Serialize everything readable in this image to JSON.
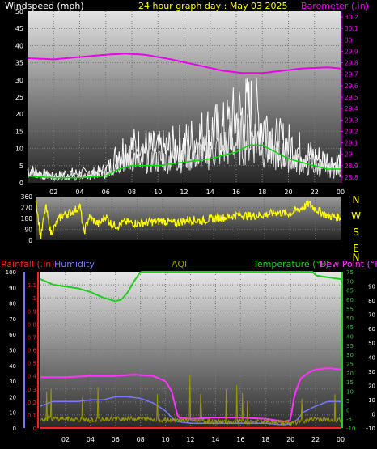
{
  "header": {
    "wind_label": "Windspeed (mph)",
    "graph_title": "24 hour graph day : May 03 2025",
    "baro_label": "Barometer (.in)"
  },
  "colors": {
    "wind": "#ffffff",
    "wind_gust": "#e0e0e0",
    "wind_avg": "#00dd00",
    "barometer": "#ee00ee",
    "direction": "#ffff00",
    "rain": "#ff2020",
    "humidity": "#7777ff",
    "aqi": "#999900",
    "temperature": "#22cc22",
    "dewpoint": "#ff33ff",
    "labels_yellow": "#ffff00",
    "compass": "#ffff00"
  },
  "lower_header": {
    "rain_label": "Rainfall (.in)",
    "humidity_label": "Humidity",
    "aqi_label": "AQI",
    "temp_label": "Temperature (°F)",
    "dew_label": "Dew Point (°F)"
  },
  "chart_data": [
    {
      "type": "line",
      "title": "24 hour graph day : May 03 2025",
      "x_ticks": [
        "02",
        "04",
        "06",
        "08",
        "10",
        "12",
        "14",
        "16",
        "18",
        "20",
        "22",
        "00"
      ],
      "xlim_hours": [
        0,
        24
      ],
      "left_axis": {
        "label": "Windspeed (mph)",
        "ylim": [
          0,
          50
        ],
        "ticks": [
          "0",
          "5",
          "10",
          "15",
          "20",
          "25",
          "30",
          "35",
          "40",
          "45",
          "50"
        ]
      },
      "right_axis": {
        "label": "Barometer (.in)",
        "ylim": [
          28.75,
          30.25
        ],
        "ticks": [
          "28.8",
          "28.9",
          "29",
          "29.1",
          "29.2",
          "29.3",
          "29.4",
          "29.5",
          "29.6",
          "29.7",
          "29.8",
          "29.9",
          "30",
          "30.1",
          "30.2"
        ]
      },
      "series": [
        {
          "name": "Barometer (.in)",
          "axis": "right",
          "x": [
            0,
            2,
            4,
            6,
            7.5,
            9,
            11,
            13,
            15,
            16.5,
            18,
            19.5,
            21,
            23,
            24
          ],
          "values": [
            29.84,
            29.83,
            29.85,
            29.87,
            29.88,
            29.87,
            29.83,
            29.78,
            29.73,
            29.71,
            29.71,
            29.73,
            29.75,
            29.76,
            29.75
          ]
        },
        {
          "name": "Windspeed (mph)",
          "axis": "left",
          "noisy": true,
          "x": [
            0,
            1,
            2,
            3,
            4,
            5,
            6,
            6.5,
            7,
            8,
            9,
            10,
            11,
            12,
            13,
            14,
            15,
            15.5,
            16,
            16.5,
            17,
            17.5,
            18,
            18.5,
            19,
            20,
            21,
            22,
            23,
            23.5,
            24
          ],
          "values": [
            4,
            3,
            2,
            3,
            3,
            3,
            4,
            6,
            10,
            11,
            11,
            10,
            11,
            12,
            14,
            16,
            16,
            18,
            20,
            21,
            22,
            21,
            19,
            17,
            13,
            12,
            10,
            8,
            7,
            6,
            7
          ]
        },
        {
          "name": "Gust",
          "axis": "left",
          "noisy": true,
          "x": [
            0,
            2,
            4,
            6,
            7,
            8,
            10,
            12,
            14,
            15,
            16,
            17,
            17.5,
            18,
            19,
            20,
            21,
            22,
            23,
            24
          ],
          "values": [
            3,
            2,
            2,
            3,
            7,
            8,
            7,
            8,
            10,
            11,
            13,
            14,
            14,
            12,
            9,
            8,
            6,
            5,
            4,
            4
          ]
        },
        {
          "name": "Average",
          "axis": "left",
          "x": [
            0,
            2,
            4,
            6,
            7,
            8,
            10,
            12,
            14,
            15,
            16,
            17,
            18,
            19,
            20,
            21,
            22,
            23,
            24
          ],
          "values": [
            2,
            1.5,
            1.5,
            2,
            4,
            5,
            5,
            6,
            7,
            8,
            9,
            11,
            11,
            9,
            7,
            6,
            5,
            4,
            4
          ]
        }
      ]
    },
    {
      "type": "line",
      "ylim": [
        0,
        360
      ],
      "y_ticks": [
        "0",
        "90",
        "180",
        "270",
        "360"
      ],
      "compass_labels": [
        "N",
        "W",
        "S",
        "E",
        "N"
      ],
      "series": [
        {
          "name": "Wind Direction",
          "noisy": true,
          "x": [
            0,
            0.4,
            0.8,
            1.2,
            2,
            3,
            3.5,
            3.8,
            4.2,
            5,
            5.5,
            6,
            6.5,
            7,
            8,
            9,
            10,
            11,
            12,
            13,
            14,
            15,
            16,
            17,
            18,
            19,
            20,
            21,
            21.5,
            22,
            23,
            24
          ],
          "values": [
            350,
            20,
            280,
            60,
            200,
            240,
            280,
            60,
            190,
            130,
            200,
            130,
            120,
            150,
            140,
            150,
            160,
            140,
            170,
            160,
            180,
            190,
            210,
            200,
            210,
            230,
            220,
            270,
            300,
            260,
            200,
            190
          ]
        }
      ]
    },
    {
      "type": "line",
      "axes": {
        "humidity": {
          "label": "Humidity",
          "ylim": [
            0,
            100
          ],
          "ticks": [
            "0",
            "10",
            "20",
            "30",
            "40",
            "50",
            "60",
            "70",
            "80",
            "90",
            "100"
          ]
        },
        "rainfall": {
          "label": "Rainfall (.in)",
          "ylim": [
            0,
            1.2
          ],
          "ticks": [
            "0",
            "0.1",
            "0.2",
            "0.3",
            "0.4",
            "0.5",
            "0.6",
            "0.7",
            "0.8",
            "0.9",
            "1",
            "1.1"
          ]
        },
        "temperature": {
          "label": "Temperature (°F)",
          "ylim": [
            -10,
            75
          ],
          "ticks": [
            "-10",
            "-5",
            "0",
            "5",
            "10",
            "15",
            "20",
            "25",
            "30",
            "35",
            "40",
            "45",
            "50",
            "55",
            "60",
            "65",
            "70",
            "75"
          ]
        },
        "dewpoint": {
          "label": "Dew Point (°F)",
          "ylim": [
            -10,
            100
          ],
          "ticks": [
            "-10",
            "0",
            "10",
            "20",
            "30",
            "40",
            "50",
            "60",
            "70",
            "80",
            "90"
          ]
        }
      },
      "x_ticks": [
        "02",
        "04",
        "06",
        "08",
        "10",
        "12",
        "14",
        "16",
        "18",
        "20",
        "22",
        "00"
      ],
      "series": [
        {
          "name": "Temperature (°F)",
          "axis": "temperature",
          "x": [
            0,
            1,
            2,
            3,
            4,
            5,
            6,
            6.5,
            7,
            7.5,
            8,
            8.5,
            21.5,
            22,
            23,
            24
          ],
          "values": [
            71,
            68,
            67,
            66,
            64,
            61,
            59,
            60,
            64,
            70,
            75,
            78,
            78,
            73,
            72,
            71
          ]
        },
        {
          "name": "Dew Point (°F)",
          "axis": "rainfall",
          "x": [
            0,
            2,
            4,
            6,
            7.5,
            9,
            10,
            10.5,
            11,
            12,
            14,
            16,
            18,
            19.5,
            20,
            20.3,
            20.8,
            21.5,
            22,
            23,
            24
          ],
          "values": [
            0.39,
            0.39,
            0.4,
            0.4,
            0.41,
            0.4,
            0.36,
            0.28,
            0.08,
            0.07,
            0.08,
            0.08,
            0.07,
            0.05,
            0.06,
            0.25,
            0.38,
            0.43,
            0.45,
            0.46,
            0.45
          ]
        },
        {
          "name": "Humidity",
          "axis": "humidity",
          "x": [
            0,
            1,
            2,
            3,
            4,
            5,
            6,
            7,
            8,
            9,
            10,
            10.7,
            11,
            12,
            14,
            16,
            18,
            19.5,
            20,
            20.5,
            21,
            22,
            23,
            24
          ],
          "values": [
            14,
            17,
            17,
            17,
            18,
            18,
            20,
            20,
            19,
            16,
            11,
            5,
            4,
            3,
            3,
            3,
            3,
            2,
            3,
            5,
            10,
            14,
            17,
            17
          ]
        },
        {
          "name": "AQI",
          "axis": "humidity",
          "noisy": true,
          "x": [
            0,
            2,
            4,
            6,
            8,
            10,
            12,
            14,
            16,
            18,
            20,
            22,
            24
          ],
          "values": [
            6,
            6,
            5,
            6,
            6,
            5,
            5,
            4,
            4,
            4,
            3,
            6,
            5
          ]
        },
        {
          "name": "Rainfall (.in)",
          "axis": "rainfall",
          "x": [
            0,
            24
          ],
          "values": [
            0,
            0
          ]
        }
      ]
    }
  ]
}
